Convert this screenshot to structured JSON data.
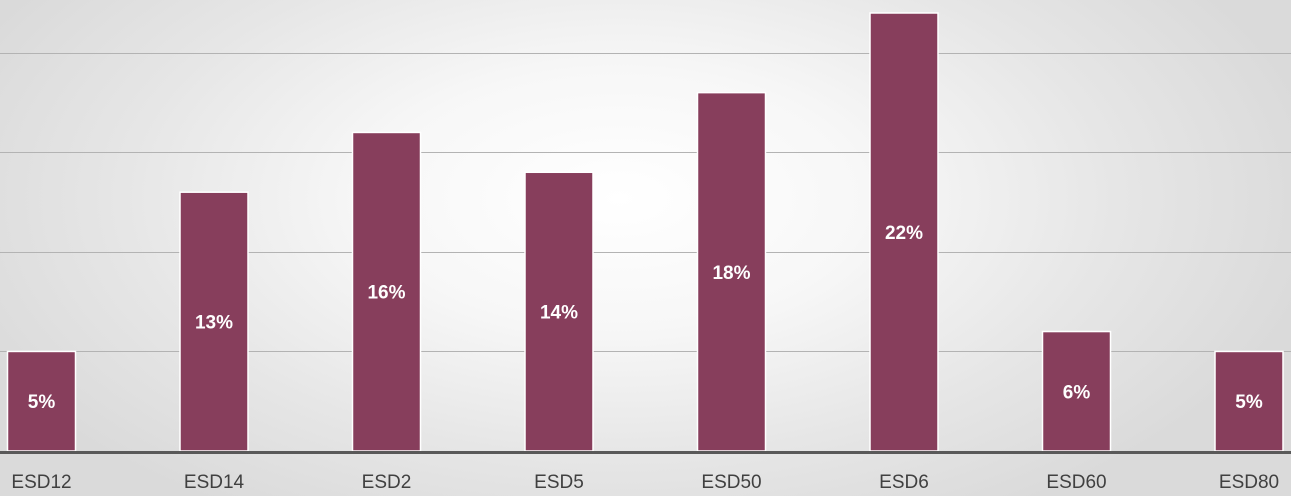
{
  "chart_data": {
    "type": "bar",
    "categories": [
      "ESD12",
      "ESD14",
      "ESD2",
      "ESD5",
      "ESD50",
      "ESD6",
      "ESD60",
      "ESD80"
    ],
    "values": [
      5,
      13,
      16,
      14,
      18,
      22,
      6,
      5
    ],
    "data_labels": [
      "5%",
      "13%",
      "16%",
      "14%",
      "18%",
      "22%",
      "6%",
      "5%"
    ],
    "ylim": [
      0,
      22
    ],
    "gridlines": [
      5,
      10,
      15,
      20
    ],
    "grid": true,
    "legend": "none",
    "bar_color": "#873E5C",
    "bar_edge_color": "#ffffff",
    "grid_color": "#b3b3b3",
    "axis_color": "#595959"
  }
}
